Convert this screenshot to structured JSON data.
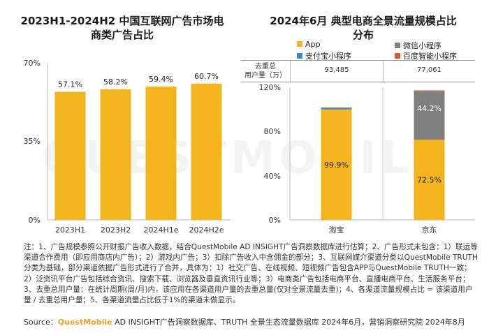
{
  "watermark": "QUESTMOBILE",
  "left_chart": {
    "title": "2023H1-2024H2 中国互联网广告市场电商类广告占比",
    "title_line1": "2023H1-2024H2 中国互联网广告市场电",
    "title_line2": "商类广告占比",
    "y_ticks": [
      "70%",
      "35%",
      "0%"
    ],
    "categories": [
      "2023H1",
      "2023H2",
      "2024H1e",
      "2024H2e"
    ],
    "value_labels": [
      "57.1%",
      "58.2%",
      "59.4%",
      "60.7%"
    ],
    "bar_color": "#f4b41c"
  },
  "right_chart": {
    "title_line1": "2024年6月 典型电商全景流量规模占比",
    "title_line2": "分布",
    "legend": [
      {
        "name": "App",
        "color": "#f4b41c"
      },
      {
        "name": "微信小程序",
        "color": "#7f7f7f"
      },
      {
        "name": "支付宝小程序",
        "color": "#2f8fd0"
      },
      {
        "name": "百度智能小程序",
        "color": "#e8542c"
      }
    ],
    "table_header_line1": "去重总",
    "table_header_line2": "用户量（万）",
    "users": [
      "93,485",
      "77,061"
    ],
    "y_ticks": [
      "120%",
      "80%",
      "40%",
      "0%"
    ],
    "categories": [
      "淘宝",
      "京东"
    ],
    "labels": [
      [
        "99.9%"
      ],
      [
        "72.5%",
        "44.2%"
      ]
    ]
  },
  "chart_data": [
    {
      "type": "bar",
      "title": "2023H1-2024H2 中国互联网广告市场电商类广告占比",
      "categories": [
        "2023H1",
        "2023H2",
        "2024H1e",
        "2024H2e"
      ],
      "values": [
        57.1,
        58.2,
        59.4,
        60.7
      ],
      "ylim": [
        0,
        70
      ],
      "unit": "%"
    },
    {
      "type": "bar",
      "stacked": true,
      "title": "2024年6月 典型电商全景流量规模占比分布",
      "categories": [
        "淘宝",
        "京东"
      ],
      "series": [
        {
          "name": "App",
          "values": [
            99.9,
            72.5
          ]
        },
        {
          "name": "微信小程序",
          "values": [
            0,
            44.2
          ]
        },
        {
          "name": "支付宝小程序",
          "values": [
            1.5,
            0
          ]
        },
        {
          "name": "百度智能小程序",
          "values": [
            0.3,
            0.5
          ]
        }
      ],
      "users_10k": [
        93485,
        77061
      ],
      "ylim": [
        0,
        120
      ],
      "unit": "%"
    }
  ],
  "footer": {
    "note": "注：1、广告规模参照公开财报广告收入数据，结合QuestMobile AD INSIGHT广告洞察数据库进行估算；2、广告形式未包含：1）联运等渠道合作费用（即应用商店内广告）；2）游戏内广告；3）扣除广告收入中含佣金的部分；3、互联网媒介渠道分类以QuestMobile TRUTH分类为基础，部分渠道依据广告形式进行了合并，具体为：1）社交广告、在线视频、短视频广告包含APP与QuestMobile TRUTH一致；2）泛资讯平台广告包括综合资讯、搜索下载、浏览器及垂直资讯行业等；3）电商类广告包括电商平台、直播电商平台、生活服务平台；3、去重总用户量：在统计周期(周/月)内，该应用在各渠道用户量的去重总量(仅对全景流量去重)；4、各渠道流量规模占比 = 该渠道用户量 / 去重总用户量；5、各渠道流量占比低于1%的渠道未做显示。",
    "source_prefix": "Source：",
    "source_brand": "QuestMobile",
    "source_rest": " AD INSIGHT广告洞察数据库、TRUTH 全景生态流量数据库 2024年6月，营销洞察研究院 2024年8月"
  }
}
